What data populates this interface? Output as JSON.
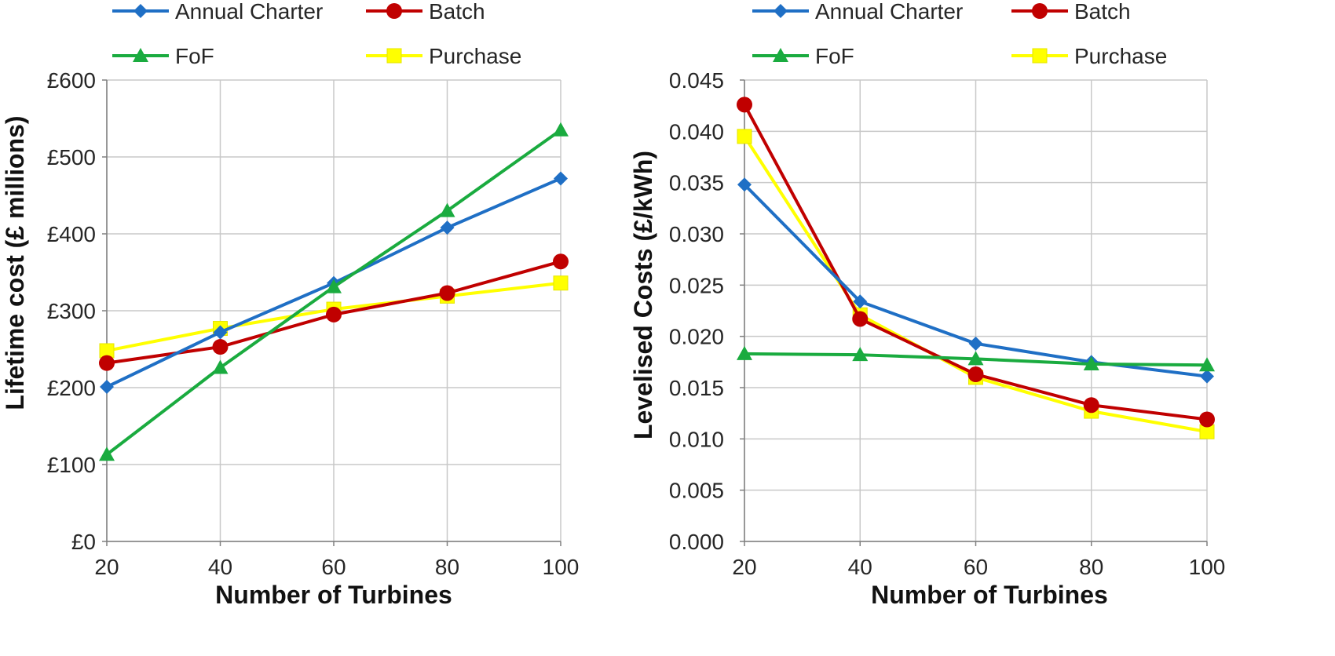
{
  "colors": {
    "Annual Charter": "#1f6fc5",
    "Batch": "#c00000",
    "FoF": "#1aab3f",
    "Purchase": "#ffff00",
    "Purchase_edge": "#e6e600"
  },
  "markers": {
    "Annual Charter": "diamond",
    "Batch": "circle",
    "FoF": "triangle",
    "Purchase": "square"
  },
  "chart_data": [
    {
      "type": "line",
      "xlabel": "Number of Turbines",
      "ylabel": "Lifetime cost  (£ millions)",
      "x": [
        20,
        40,
        60,
        80,
        100
      ],
      "xticks": [
        "20",
        "40",
        "60",
        "80",
        "100"
      ],
      "ylim": [
        0,
        600
      ],
      "yticks": [
        "£0",
        "£100",
        "£200",
        "£300",
        "£400",
        "£500",
        "£600"
      ],
      "grid": true,
      "legend_placement": "top",
      "series": [
        {
          "name": "Annual Charter",
          "values": [
            201,
            272,
            336,
            408,
            472
          ]
        },
        {
          "name": "Batch",
          "values": [
            232,
            253,
            295,
            323,
            364
          ]
        },
        {
          "name": "FoF",
          "values": [
            113,
            226,
            331,
            430,
            535
          ]
        },
        {
          "name": "Purchase",
          "values": [
            248,
            277,
            302,
            319,
            336
          ]
        }
      ]
    },
    {
      "type": "line",
      "xlabel": "Number of Turbines",
      "ylabel": "Levelised Costs (£/kWh)",
      "x": [
        20,
        40,
        60,
        80,
        100
      ],
      "xticks": [
        "20",
        "40",
        "60",
        "80",
        "100"
      ],
      "ylim": [
        0,
        0.045
      ],
      "yticks": [
        "0.000",
        "0.005",
        "0.010",
        "0.015",
        "0.020",
        "0.025",
        "0.030",
        "0.035",
        "0.040",
        "0.045"
      ],
      "grid": true,
      "legend_placement": "top",
      "series": [
        {
          "name": "Annual Charter",
          "values": [
            0.0348,
            0.0234,
            0.0193,
            0.0175,
            0.0161
          ]
        },
        {
          "name": "Batch",
          "values": [
            0.0426,
            0.0217,
            0.0163,
            0.0133,
            0.0119
          ]
        },
        {
          "name": "FoF",
          "values": [
            0.0183,
            0.0182,
            0.0178,
            0.0173,
            0.0172
          ]
        },
        {
          "name": "Purchase",
          "values": [
            0.0395,
            0.0221,
            0.016,
            0.0127,
            0.0107
          ]
        }
      ]
    }
  ]
}
